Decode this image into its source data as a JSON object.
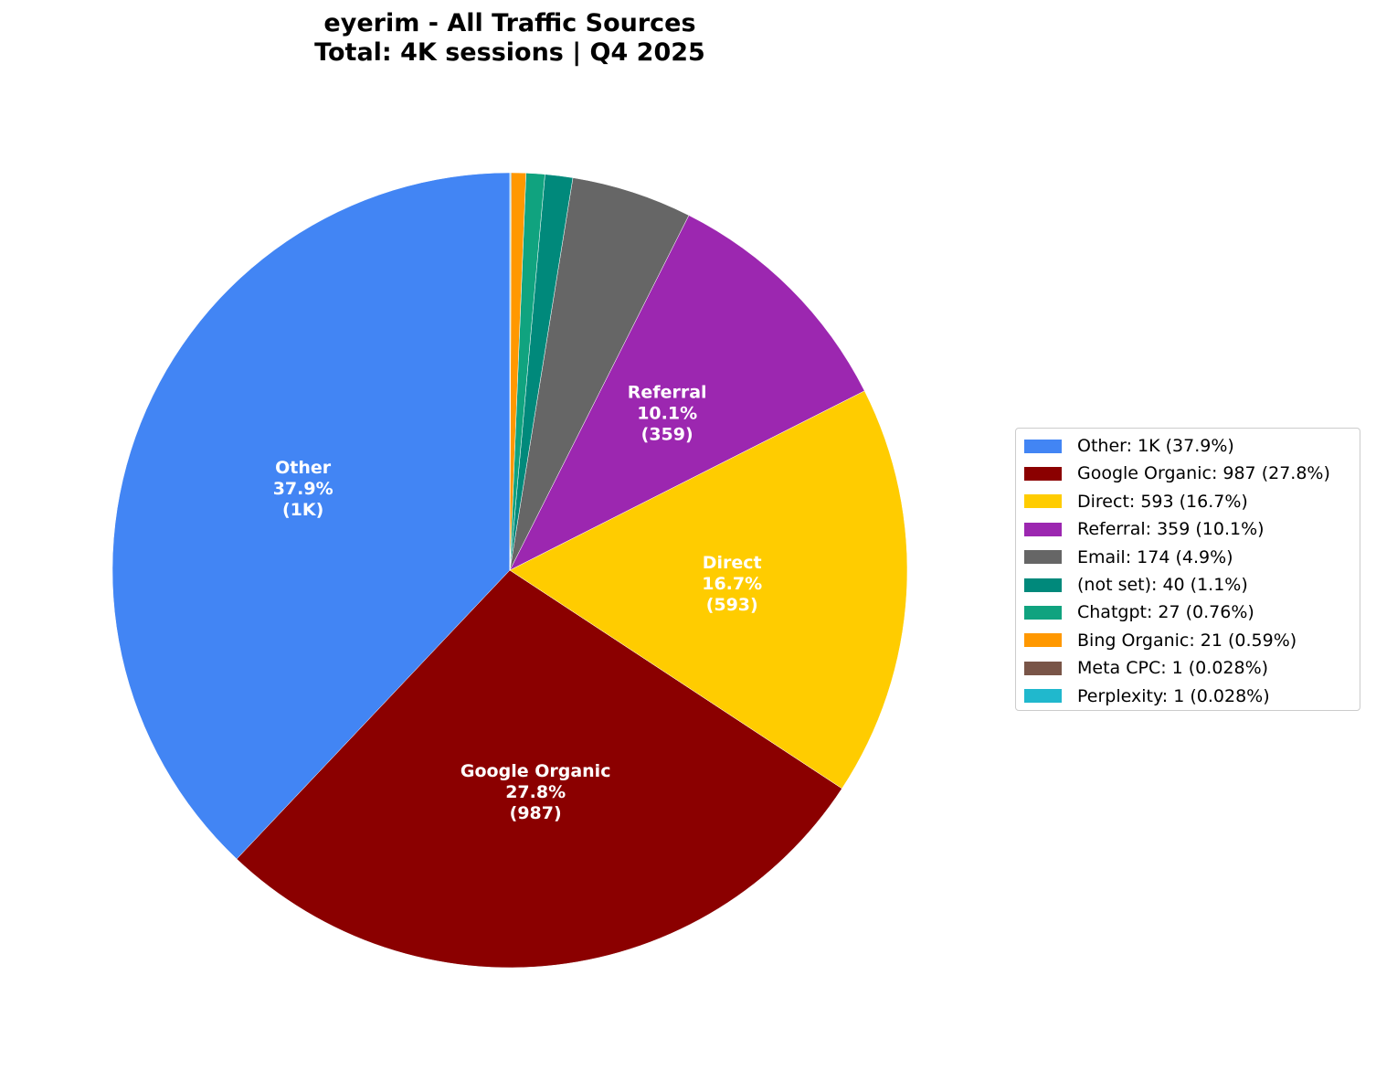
{
  "chart": {
    "title_line1": "eyerim - All Traffic Sources",
    "title_line2": "Total: 4K sessions | Q4 2025"
  },
  "chart_data": {
    "type": "pie",
    "title": "eyerim - All Traffic Sources\nTotal: 4K sessions | Q4 2025",
    "start_angle": 90,
    "direction": "counterclockwise",
    "legend_position": "right",
    "slices": [
      {
        "label": "Other",
        "value": 1347,
        "display_value": "1K",
        "percent": "37.9%",
        "color": "#4285F4",
        "legend": "Other: 1K (37.9%)",
        "show_label": true
      },
      {
        "label": "Google Organic",
        "value": 987,
        "display_value": "987",
        "percent": "27.8%",
        "color": "#8B0000",
        "legend": "Google Organic: 987 (27.8%)",
        "show_label": true
      },
      {
        "label": "Direct",
        "value": 593,
        "display_value": "593",
        "percent": "16.7%",
        "color": "#FFCC00",
        "legend": "Direct: 593 (16.7%)",
        "show_label": true
      },
      {
        "label": "Referral",
        "value": 359,
        "display_value": "359",
        "percent": "10.1%",
        "color": "#9C27B0",
        "legend": "Referral: 359 (10.1%)",
        "show_label": true
      },
      {
        "label": "Email",
        "value": 174,
        "display_value": "174",
        "percent": "4.9%",
        "color": "#666666",
        "legend": "Email: 174 (4.9%)",
        "show_label": false
      },
      {
        "label": "(not set)",
        "value": 40,
        "display_value": "40",
        "percent": "1.1%",
        "color": "#00897B",
        "legend": "(not set): 40 (1.1%)",
        "show_label": false
      },
      {
        "label": "Chatgpt",
        "value": 27,
        "display_value": "27",
        "percent": "0.76%",
        "color": "#10A37F",
        "legend": "Chatgpt: 27 (0.76%)",
        "show_label": false
      },
      {
        "label": "Bing Organic",
        "value": 21,
        "display_value": "21",
        "percent": "0.59%",
        "color": "#FF9800",
        "legend": "Bing Organic: 21 (0.59%)",
        "show_label": false
      },
      {
        "label": "Meta CPC",
        "value": 1,
        "display_value": "1",
        "percent": "0.028%",
        "color": "#795548",
        "legend": "Meta CPC: 1 (0.028%)",
        "show_label": false
      },
      {
        "label": "Perplexity",
        "value": 1,
        "display_value": "1",
        "percent": "0.028%",
        "color": "#20B8CD",
        "legend": "Perplexity: 1 (0.028%)",
        "show_label": false
      }
    ]
  }
}
